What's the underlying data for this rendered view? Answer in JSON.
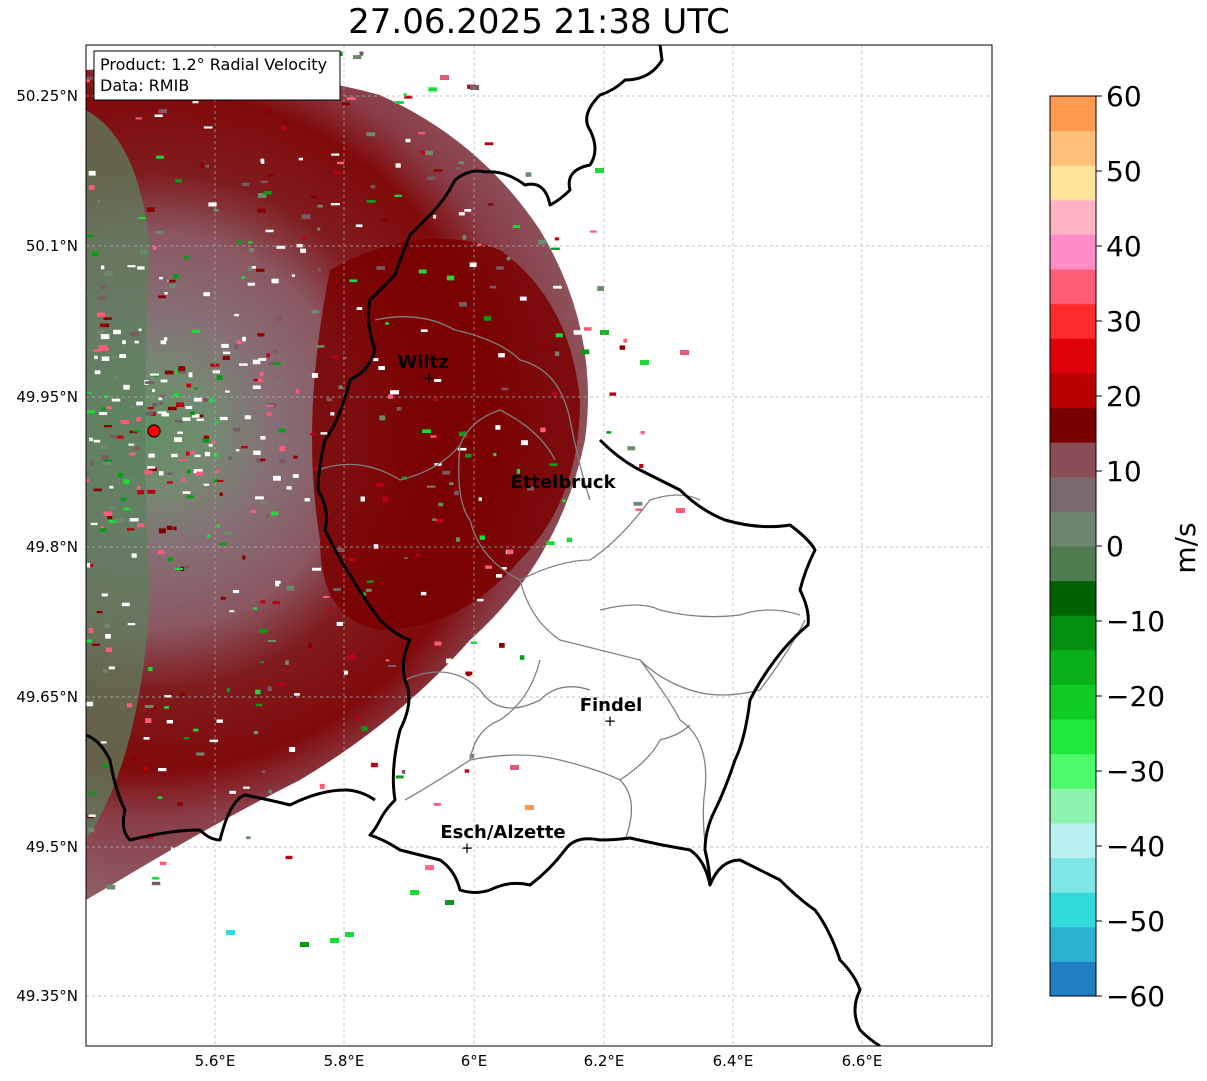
{
  "title": "27.06.2025 21:38 UTC",
  "info": {
    "product": "Product: 1.2° Radial Velocity",
    "data": "Data: RMIB"
  },
  "lon_ticks": [
    "5.6°E",
    "5.8°E",
    "6°E",
    "6.2°E",
    "6.4°E",
    "6.6°E"
  ],
  "lat_ticks": [
    "50.25°N",
    "50.1°N",
    "49.95°N",
    "49.8°N",
    "49.65°N",
    "49.5°N",
    "49.35°N"
  ],
  "cities": [
    {
      "name": "Wiltz"
    },
    {
      "name": "Ettelbruck"
    },
    {
      "name": "Findel"
    },
    {
      "name": "Esch/Alzette"
    }
  ],
  "colorbar": {
    "unit": "m/s",
    "tick_labels": [
      "60",
      "50",
      "40",
      "30",
      "20",
      "10",
      "0",
      "−10",
      "−20",
      "−30",
      "−40",
      "−50",
      "−60"
    ],
    "min": -60,
    "max": 60,
    "colors": [
      "#1f7fc1",
      "#2ab4d2",
      "#33dada",
      "#7ee6e6",
      "#b9f0f0",
      "#8ef3ad",
      "#4dfa6c",
      "#1fe93a",
      "#0fcc24",
      "#08b01a",
      "#048e12",
      "#006200",
      "#4e7b50",
      "#6e8570",
      "#7a6a70",
      "#8a4d56",
      "#7a0000",
      "#b80000",
      "#e00007",
      "#ff2a2a",
      "#ff5c78",
      "#ff8bc7",
      "#ffb3c4",
      "#ffe59a",
      "#ffc07a",
      "#ff9a50"
    ]
  },
  "radar_site": {
    "lon": 5.505,
    "lat": 49.914
  },
  "map_colors": {
    "border": "#000000",
    "subdivision": "#808080",
    "grid": "#b0b0b0"
  }
}
